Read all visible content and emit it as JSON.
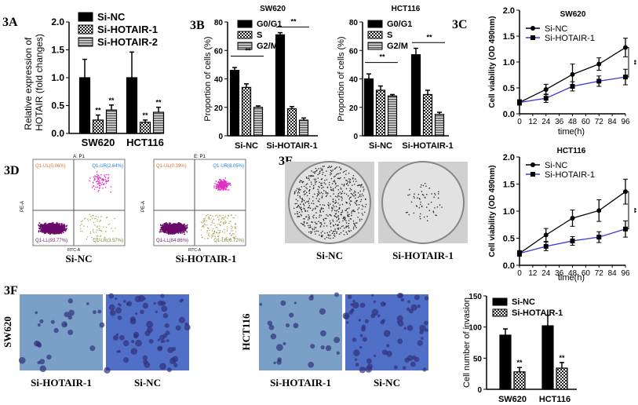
{
  "panel_labels": {
    "a": "3A",
    "b": "3B",
    "c1": "3C",
    "c2": "3C",
    "d": "3D",
    "e": "3E",
    "f": "3F"
  },
  "chart_data": [
    {
      "id": "A",
      "type": "bar",
      "ylabel": "Relative expression of HOTAIR (fold changes)",
      "categories": [
        "SW620",
        "HCT116"
      ],
      "ylim": [
        0,
        2.0
      ],
      "yticks": [
        "0.0",
        "0.5",
        "1.0",
        "1.5",
        "2.0"
      ],
      "legend": "top",
      "series": [
        {
          "name": "Si-NC",
          "values": [
            1.0,
            1.0
          ],
          "errors": [
            0.33,
            0.46
          ],
          "pattern": "solid"
        },
        {
          "name": "Si-HOTAIR-1",
          "values": [
            0.24,
            0.2
          ],
          "errors": [
            0.09,
            0.04
          ],
          "pattern": "dots",
          "sig": "**"
        },
        {
          "name": "Si-HOTAIR-2",
          "values": [
            0.42,
            0.38
          ],
          "errors": [
            0.09,
            0.09
          ],
          "pattern": "stripes",
          "sig": "**"
        }
      ]
    },
    {
      "id": "B1",
      "type": "bar",
      "title": "SW620",
      "ylabel": "Proportion of cells (%)",
      "categories": [
        "Si-NC",
        "Si-HOTAIR-1"
      ],
      "ylim": [
        0,
        80
      ],
      "yticks": [
        "0",
        "20",
        "40",
        "60",
        "80"
      ],
      "legend": "top-left",
      "series": [
        {
          "name": "G0/G1",
          "values": [
            46,
            71
          ],
          "errors": [
            2,
            1.5
          ],
          "pattern": "solid"
        },
        {
          "name": "S",
          "values": [
            34,
            19
          ],
          "errors": [
            2.5,
            1.5
          ],
          "pattern": "dots"
        },
        {
          "name": "G2/M",
          "values": [
            20,
            11
          ],
          "errors": [
            1,
            1.5
          ],
          "pattern": "stripes"
        }
      ],
      "annotations": [
        "**",
        "**"
      ]
    },
    {
      "id": "B2",
      "type": "bar",
      "title": "HCT116",
      "ylabel": "Proportion of cells (%)",
      "categories": [
        "Si-NC",
        "Si-HOTAIR-1"
      ],
      "ylim": [
        0,
        80
      ],
      "yticks": [
        "0",
        "20",
        "40",
        "60",
        "80"
      ],
      "legend": "top-left",
      "series": [
        {
          "name": "G0/G1",
          "values": [
            40,
            57
          ],
          "errors": [
            3.5,
            4.5
          ],
          "pattern": "solid"
        },
        {
          "name": "S",
          "values": [
            32,
            29
          ],
          "errors": [
            3,
            3
          ],
          "pattern": "dots"
        },
        {
          "name": "G2/M",
          "values": [
            28,
            15
          ],
          "errors": [
            1,
            1.5
          ],
          "pattern": "stripes"
        }
      ],
      "annotations": [
        "**",
        "**"
      ]
    },
    {
      "id": "C1",
      "type": "line",
      "title": "SW620",
      "xlabel": "time(h)",
      "ylabel": "Cell viability (OD 490nm)",
      "x": [
        0,
        24,
        48,
        72,
        96
      ],
      "xticks": [
        "0",
        "12",
        "24",
        "36",
        "48",
        "60",
        "72",
        "84",
        "96"
      ],
      "ylim": [
        0,
        2.0
      ],
      "yticks": [
        "0.0",
        "0.5",
        "1.0",
        "1.5",
        "2.0"
      ],
      "legend": "top",
      "series": [
        {
          "name": "Si-NC",
          "values": [
            0.22,
            0.47,
            0.76,
            0.96,
            1.28
          ],
          "errors": [
            0.05,
            0.1,
            0.2,
            0.12,
            0.18
          ],
          "color": "#000000",
          "marker": "circle"
        },
        {
          "name": "Si-HOTAIR-1",
          "values": [
            0.22,
            0.3,
            0.53,
            0.63,
            0.71
          ],
          "errors": [
            0.05,
            0.08,
            0.09,
            0.1,
            0.15
          ],
          "color": "#3a3ad0",
          "marker": "square"
        }
      ],
      "annotations": [
        "**"
      ]
    },
    {
      "id": "C2",
      "type": "line",
      "title": "HCT116",
      "xlabel": "time(h)",
      "ylabel": "Cell viability (OD 490nm)",
      "x": [
        0,
        24,
        48,
        72,
        96
      ],
      "xticks": [
        "0",
        "12",
        "24",
        "36",
        "48",
        "60",
        "72",
        "84",
        "96"
      ],
      "ylim": [
        0,
        2.0
      ],
      "yticks": [
        "0.0",
        "0.5",
        "1.0",
        "1.5",
        "2.0"
      ],
      "legend": "top",
      "series": [
        {
          "name": "Si-NC",
          "values": [
            0.22,
            0.56,
            0.87,
            1.01,
            1.36
          ],
          "errors": [
            0.05,
            0.12,
            0.15,
            0.2,
            0.23
          ],
          "color": "#000000",
          "marker": "circle"
        },
        {
          "name": "Si-HOTAIR-1",
          "values": [
            0.22,
            0.35,
            0.45,
            0.52,
            0.67
          ],
          "errors": [
            0.05,
            0.08,
            0.08,
            0.1,
            0.15
          ],
          "color": "#3a3ad0",
          "marker": "square"
        }
      ],
      "annotations": [
        "**"
      ]
    },
    {
      "id": "F",
      "type": "bar",
      "ylabel": "Cell number of invasion",
      "categories": [
        "SW620",
        "HCT116"
      ],
      "ylim": [
        0,
        150
      ],
      "yticks": [
        "0",
        "50",
        "100",
        "150"
      ],
      "legend": "top",
      "series": [
        {
          "name": "Si-NC",
          "values": [
            87,
            102
          ],
          "errors": [
            10,
            17
          ],
          "pattern": "solid"
        },
        {
          "name": "Si-HOTAIR-1",
          "values": [
            28,
            34
          ],
          "errors": [
            7,
            9
          ],
          "pattern": "dots",
          "sig": "**"
        }
      ]
    }
  ],
  "flow": [
    {
      "title": "A: P1",
      "ul": "Q1-UL(0.06%)",
      "ur": "Q1-UR(2.64%)",
      "ll": "Q1-LL(93.77%)",
      "lr": "Q1-LR(3.57%)",
      "xlabel": "FITC-A",
      "ylabel": "PE-A",
      "caption": "Si-NC"
    },
    {
      "title": "E: P1",
      "ul": "Q1-UL(0.39%)",
      "ur": "Q1-UR(8.05%)",
      "ll": "Q1-LL(84.86%)",
      "lr": "Q1-LR(6.72%)",
      "xlabel": "FITC-A",
      "ylabel": "PE-A",
      "caption": "Si-HOTAIR-1"
    }
  ],
  "colony": {
    "captions": [
      "Si-NC",
      "Si-HOTAIR-1"
    ]
  },
  "invasion": {
    "rows": [
      "SW620",
      "HCT116"
    ],
    "captions": [
      "Si-HOTAIR-1",
      "Si-NC",
      "Si-HOTAIR-1",
      "Si-NC"
    ]
  }
}
